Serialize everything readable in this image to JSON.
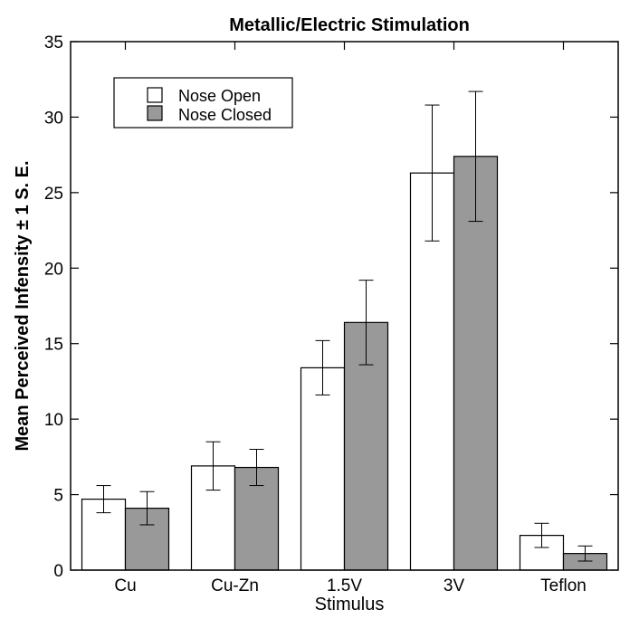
{
  "chart_data": {
    "type": "bar",
    "title": "Metallic/Electric Stimulation",
    "xlabel": "Stimulus",
    "ylabel": "Mean Perceived Infensity ± 1 S. E.",
    "categories": [
      "Cu",
      "Cu-Zn",
      "1.5V",
      "3V",
      "Teflon"
    ],
    "ylim": [
      0,
      35
    ],
    "yticks": [
      0,
      5,
      10,
      15,
      20,
      25,
      30,
      35
    ],
    "legend_position": "top-left",
    "grid": false,
    "series": [
      {
        "name": "Nose Open",
        "color": "#ffffff",
        "values": [
          4.7,
          6.9,
          13.4,
          26.3,
          2.3
        ],
        "errors": [
          0.9,
          1.6,
          1.8,
          4.5,
          0.8
        ]
      },
      {
        "name": "Nose Closed",
        "color": "#999999",
        "values": [
          4.1,
          6.8,
          16.4,
          27.4,
          1.1
        ],
        "errors": [
          1.1,
          1.2,
          2.8,
          4.3,
          0.5
        ]
      }
    ]
  }
}
